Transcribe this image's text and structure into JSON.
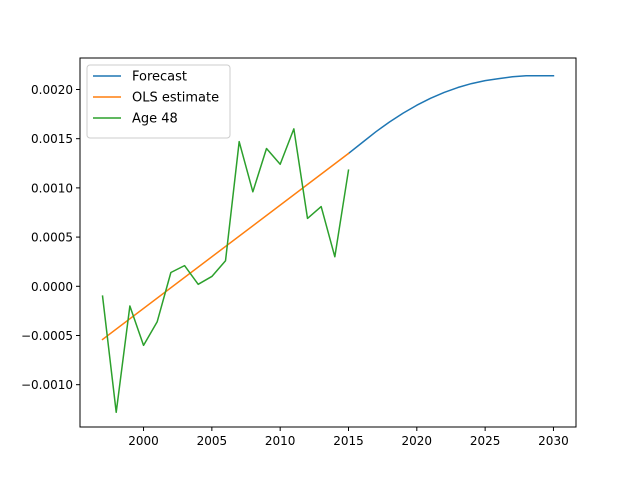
{
  "chart_data": {
    "type": "line",
    "title": "",
    "xlabel": "",
    "ylabel": "",
    "xlim": [
      1995.35,
      2031.65
    ],
    "ylim": [
      -0.00143,
      0.00232
    ],
    "x_ticks": [
      2000,
      2005,
      2010,
      2015,
      2020,
      2025,
      2030
    ],
    "x_tick_labels": [
      "2000",
      "2005",
      "2010",
      "2015",
      "2020",
      "2025",
      "2030"
    ],
    "y_ticks": [
      -0.001,
      -0.0005,
      0.0,
      0.0005,
      0.001,
      0.0015,
      0.002
    ],
    "y_tick_labels": [
      "−0.0010",
      "−0.0005",
      "0.0000",
      "0.0005",
      "0.0010",
      "0.0015",
      "0.0020"
    ],
    "grid": false,
    "legend_position": "upper-left",
    "series": [
      {
        "name": "Forecast",
        "color": "#1f77b4",
        "x": [
          2015,
          2016,
          2017,
          2018,
          2019,
          2020,
          2021,
          2022,
          2023,
          2024,
          2025,
          2026,
          2027,
          2028,
          2029,
          2030
        ],
        "y": [
          0.00135,
          0.00146,
          0.00157,
          0.00167,
          0.00176,
          0.00184,
          0.00191,
          0.00197,
          0.00202,
          0.00206,
          0.00209,
          0.00211,
          0.00213,
          0.00214,
          0.00214,
          0.00214
        ]
      },
      {
        "name": "OLS estimate",
        "color": "#ff7f0e",
        "x": [
          1997,
          2015
        ],
        "y": [
          -0.00054,
          0.00135
        ]
      },
      {
        "name": "Age 48",
        "color": "#2ca02c",
        "x": [
          1997,
          1998,
          1999,
          2000,
          2001,
          2002,
          2003,
          2004,
          2005,
          2006,
          2007,
          2008,
          2009,
          2010,
          2011,
          2012,
          2013,
          2014,
          2015
        ],
        "y": [
          -0.0001,
          -0.00128,
          -0.0002,
          -0.0006,
          -0.00036,
          0.00014,
          0.00021,
          2e-05,
          0.0001,
          0.00026,
          0.00147,
          0.00096,
          0.0014,
          0.00124,
          0.0016,
          0.00069,
          0.00081,
          0.0003,
          0.00118
        ]
      }
    ]
  }
}
